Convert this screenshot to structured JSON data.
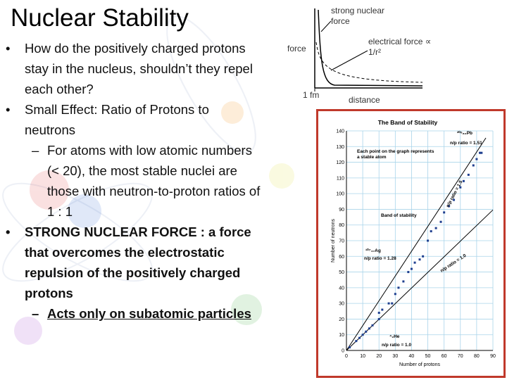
{
  "title": "Nuclear Stability",
  "bullets": [
    {
      "text": "How do the positively charged protons stay in the nucleus, shouldn’t they repel each other?",
      "sub": []
    },
    {
      "text": "Small Effect: Ratio of Protons to neutrons",
      "sub": [
        "For atoms with low atomic numbers (< 20), the most stable nuclei are those with neutron-to-proton ratios of 1 : 1"
      ]
    },
    {
      "text": "STRONG NUCLEAR FORCE : a force that overcomes the electrostatic repulsion of the positively charged protons",
      "sub": [
        "Acts only on subatomic particles"
      ]
    }
  ],
  "force_figure": {
    "strong_label": "strong nuclear force",
    "y_label": "force",
    "electrical_label": "electrical force ∝ 1/r²",
    "x_mark": "1 fm",
    "x_label": "distance"
  },
  "band_chart": {
    "type": "scatter",
    "title": "The Band of Stability",
    "xlabel": "Number of protons",
    "ylabel": "Number of neutrons",
    "xlim": [
      0,
      90
    ],
    "ylim": [
      0,
      140
    ],
    "xticks": [
      0,
      10,
      20,
      30,
      40,
      50,
      60,
      70,
      80,
      90
    ],
    "yticks": [
      0,
      10,
      20,
      30,
      40,
      50,
      60,
      70,
      80,
      90,
      100,
      110,
      120,
      130,
      140
    ],
    "color": "#1f3f8f",
    "x": [
      2,
      6,
      8,
      10,
      12,
      14,
      16,
      20,
      20,
      22,
      26,
      28,
      30,
      32,
      35,
      38,
      40,
      42,
      45,
      47,
      50,
      52,
      55,
      58,
      60,
      63,
      66,
      70,
      72,
      75,
      78,
      80,
      82,
      83
    ],
    "y": [
      2,
      6,
      8,
      10,
      12,
      14,
      16,
      20,
      24,
      26,
      30,
      30,
      36,
      40,
      44,
      50,
      52,
      56,
      58,
      60,
      70,
      76,
      78,
      82,
      88,
      92,
      96,
      104,
      108,
      112,
      118,
      122,
      126,
      126
    ],
    "annotations": [
      "²⁰⁶₈₂Pb",
      "n/p ratio = 1.51",
      "Each point on the graph represents a stable atom",
      "n/p ratio = 1.5",
      "Band of stability",
      "¹⁰⁷₄₇Ag",
      "n/p ratio = 1.28",
      "n/p ratio = 1.0",
      "⁴₂He",
      "n/p ratio = 1.0"
    ]
  }
}
